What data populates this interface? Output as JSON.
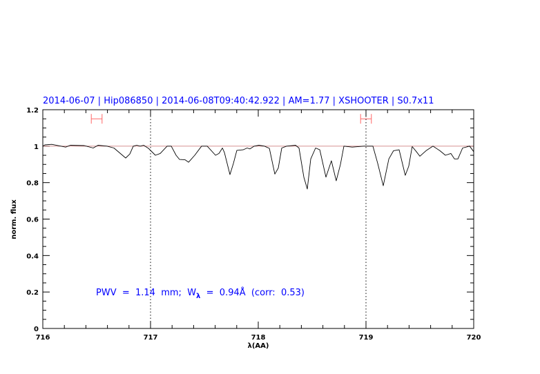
{
  "chart_data": {
    "type": "line",
    "title": "2014-06-07 | Hip086850 | 2014-06-08T09:40:42.922 | AM=1.77 | XSHOOTER | S0.7x11",
    "xlabel": "λ(AA)",
    "ylabel": "norm. flux",
    "xlim": [
      716,
      720
    ],
    "ylim": [
      0,
      1.2
    ],
    "x_ticks": [
      "716",
      "717",
      "718",
      "719",
      "720"
    ],
    "y_ticks": [
      "0",
      "0.2",
      "0.4",
      "0.6",
      "0.8",
      "1",
      "1.2"
    ],
    "grid": false,
    "reference_line": 1.0,
    "vertical_markers": [
      717,
      719
    ],
    "error_bars": [
      {
        "x": [
          716.45,
          716.55
        ],
        "y": 1.15
      },
      {
        "x": [
          718.95,
          719.05
        ],
        "y": 1.15
      }
    ],
    "annotation": {
      "prefix": "PWV  =  1.14  mm;  W",
      "subscript": "λ",
      "suffix": "  =  0.94Å  (corr:  0.53)"
    },
    "colors": {
      "spectrum": "#000000",
      "reference": "#d08080",
      "error_bar": "#ff6666",
      "text": "#0000ff"
    },
    "series": [
      {
        "x": [
          716.0,
          716.019,
          716.083,
          716.212,
          716.256,
          716.385,
          716.468,
          716.513,
          716.596,
          716.66,
          716.769,
          716.808,
          716.84,
          716.872,
          716.904,
          716.936,
          716.981,
          717.045,
          717.09,
          717.154,
          717.192,
          717.237,
          717.269,
          717.321,
          717.353,
          717.41,
          717.474,
          717.526,
          717.603,
          717.635,
          717.667,
          717.686,
          717.737,
          717.769,
          717.801,
          717.859,
          717.897,
          717.923,
          717.962,
          718.006,
          718.058,
          718.103,
          718.154,
          718.186,
          718.218,
          718.263,
          718.346,
          718.378,
          718.423,
          718.455,
          718.487,
          718.532,
          718.571,
          718.628,
          718.679,
          718.724,
          718.763,
          718.795,
          718.872,
          718.981,
          719.064,
          719.109,
          719.16,
          719.212,
          719.256,
          719.308,
          719.365,
          719.397,
          719.429,
          719.468,
          719.5,
          719.558,
          719.622,
          719.686,
          719.737,
          719.788,
          719.821,
          719.853,
          719.897,
          719.962,
          720.0
        ],
        "y": [
          1.0,
          1.007,
          1.01,
          0.995,
          1.005,
          1.003,
          0.99,
          1.005,
          1.0,
          0.99,
          0.935,
          0.957,
          1.0,
          1.005,
          1.0,
          1.005,
          0.988,
          0.95,
          0.96,
          1.0,
          1.0,
          0.95,
          0.927,
          0.925,
          0.912,
          0.95,
          1.0,
          1.0,
          0.95,
          0.96,
          0.99,
          0.965,
          0.844,
          0.905,
          0.977,
          0.98,
          0.99,
          0.985,
          1.0,
          1.005,
          1.0,
          0.988,
          0.847,
          0.88,
          0.99,
          1.0,
          1.005,
          0.99,
          0.83,
          0.765,
          0.93,
          0.99,
          0.98,
          0.83,
          0.92,
          0.81,
          0.9,
          1.0,
          0.995,
          1.0,
          1.0,
          0.905,
          0.783,
          0.93,
          0.975,
          0.98,
          0.84,
          0.89,
          0.998,
          0.97,
          0.945,
          0.975,
          1.0,
          0.975,
          0.95,
          0.96,
          0.93,
          0.93,
          0.99,
          1.0,
          0.97
        ]
      }
    ]
  }
}
